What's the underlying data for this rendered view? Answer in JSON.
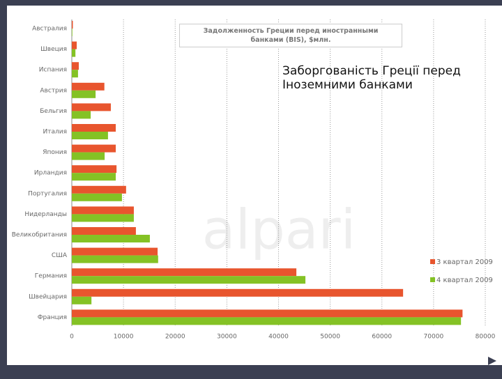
{
  "chart_data": {
    "type": "bar",
    "orientation": "horizontal",
    "title": "Задолженность Греции перед иностранными банками (BIS), $млн.",
    "annotation": "Заборгованість Греції перед Іноземними банками",
    "watermark": "alpari",
    "categories": [
      "Австралия",
      "Швеция",
      "Испания",
      "Австрия",
      "Бельгия",
      "Италия",
      "Япония",
      "Ирландия",
      "Португалия",
      "Нидерланды",
      "Великобритания",
      "США",
      "Германия",
      "Швейцария",
      "Франция"
    ],
    "series": [
      {
        "name": "3 квартал 2009",
        "color": "#e8552e",
        "values": [
          200,
          950,
          1350,
          6300,
          7550,
          8500,
          8500,
          8650,
          10500,
          12000,
          12400,
          16600,
          43450,
          64100,
          75600
        ]
      },
      {
        "name": "4 квартал 2009",
        "color": "#84c225",
        "values": [
          100,
          700,
          1200,
          4600,
          3650,
          7000,
          6350,
          8500,
          9700,
          12000,
          15100,
          16700,
          45200,
          3800,
          75300
        ]
      }
    ],
    "xlim": [
      0,
      80000
    ],
    "xticks": [
      0,
      10000,
      20000,
      30000,
      40000,
      50000,
      60000,
      70000,
      80000
    ],
    "grid": true,
    "legend": "right"
  }
}
